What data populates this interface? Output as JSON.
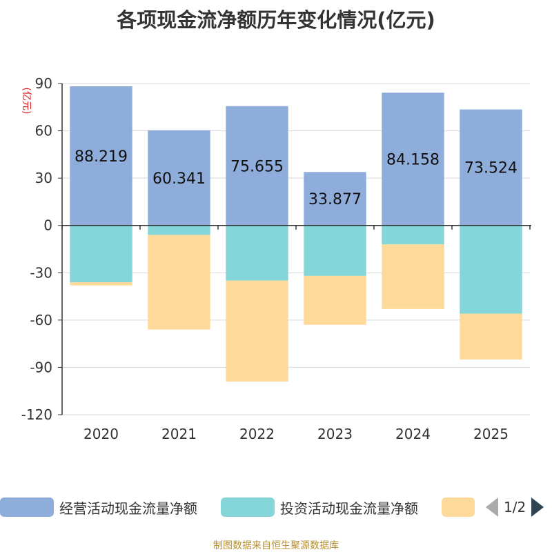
{
  "chart_data": {
    "type": "bar",
    "stacked": true,
    "title": "各项现金流净额历年变化情况(亿元)",
    "ylabel": "(亿元)",
    "ylim": [
      -120,
      90
    ],
    "yticks": [
      90,
      60,
      30,
      0,
      -30,
      -60,
      -90,
      -120
    ],
    "categories": [
      "2020",
      "2021",
      "2022",
      "2023",
      "2024",
      "2025"
    ],
    "series": [
      {
        "name": "经营活动现金流量净额",
        "color": "#8eaddb",
        "values": [
          88.219,
          60.341,
          75.655,
          33.877,
          84.158,
          73.524
        ],
        "labels": [
          "88.219",
          "60.341",
          "75.655",
          "33.877",
          "84.158",
          "73.524"
        ]
      },
      {
        "name": "投资活动现金流量净额",
        "color": "#85d6d8",
        "values": [
          -36,
          -6,
          -35,
          -32,
          -12,
          -56
        ]
      },
      {
        "name": "",
        "color": "#fdd99a",
        "values": [
          -2,
          -60,
          -64,
          -31,
          -41,
          -29
        ]
      }
    ],
    "grid": true,
    "legend_position": "bottom"
  },
  "legend": {
    "items": [
      "经营活动现金流量净额",
      "投资活动现金流量净额",
      ""
    ],
    "pager": "1/2"
  },
  "footer": {
    "source": "制图数据来自恒生聚源数据库"
  }
}
